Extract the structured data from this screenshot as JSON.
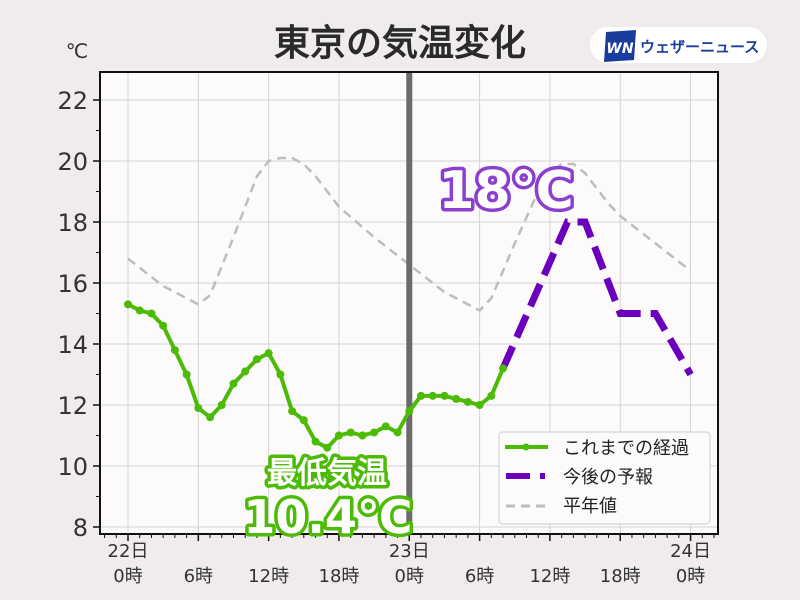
{
  "header": {
    "title": "東京の気温変化",
    "logo_mark": "WN",
    "logo_text": "ウェザーニュース"
  },
  "chart_data": {
    "type": "line",
    "title": "東京の気温変化",
    "ylabel": "℃",
    "xlabel": "",
    "ylim": [
      7.8,
      23
    ],
    "xlim": [
      -2.4,
      50.5
    ],
    "grid": true,
    "yticks": [
      8,
      10,
      12,
      14,
      16,
      18,
      20,
      22
    ],
    "xticks": [
      {
        "hour": 0,
        "day": "22日",
        "time": "0時"
      },
      {
        "hour": 6,
        "day": "",
        "time": "6時"
      },
      {
        "hour": 12,
        "day": "",
        "time": "12時"
      },
      {
        "hour": 18,
        "day": "",
        "time": "18時"
      },
      {
        "hour": 24,
        "day": "23日",
        "time": "0時"
      },
      {
        "hour": 30,
        "day": "",
        "time": "6時"
      },
      {
        "hour": 36,
        "day": "",
        "time": "12時"
      },
      {
        "hour": 42,
        "day": "",
        "time": "18時"
      },
      {
        "hour": 48,
        "day": "24日",
        "time": "0時"
      }
    ],
    "now_hour": 24,
    "legend_position": "bottom-right",
    "series": [
      {
        "name": "これまでの経過",
        "color": "#4cbb05",
        "style": "solid-marker",
        "x": [
          0,
          1,
          2,
          3,
          4,
          5,
          6,
          7,
          8,
          9,
          10,
          11,
          12,
          13,
          14,
          15,
          16,
          17,
          18,
          19,
          20,
          21,
          22,
          23,
          24,
          25,
          26,
          27,
          28,
          29,
          30,
          31,
          32
        ],
        "y": [
          15.3,
          15.1,
          15.0,
          14.6,
          13.8,
          13.0,
          11.9,
          11.6,
          12.0,
          12.7,
          13.1,
          13.5,
          13.7,
          13.0,
          11.8,
          11.5,
          10.8,
          10.6,
          11.0,
          11.1,
          11.0,
          11.1,
          11.3,
          11.1,
          11.8,
          12.3,
          12.3,
          12.3,
          12.2,
          12.1,
          12.0,
          12.3,
          13.2
        ]
      },
      {
        "name": "今後の予報",
        "color": "#6a00bd",
        "style": "dashed-thick",
        "x": [
          32,
          37.5,
          39,
          42,
          45,
          48
        ],
        "y": [
          13.2,
          18.0,
          18.0,
          15.0,
          15.0,
          13.0
        ]
      },
      {
        "name": "平年値",
        "color": "#bdbdbd",
        "style": "dashed",
        "x": [
          0,
          3,
          6,
          7,
          9,
          11,
          12,
          13,
          14,
          15,
          16,
          18,
          21,
          24,
          27,
          30,
          31,
          33,
          35,
          36,
          37,
          38,
          39,
          41,
          42,
          45,
          48
        ],
        "y": [
          16.8,
          15.9,
          15.3,
          15.6,
          17.5,
          19.5,
          20.0,
          20.1,
          20.1,
          19.9,
          19.5,
          18.5,
          17.5,
          16.6,
          15.7,
          15.1,
          15.5,
          17.3,
          19.0,
          19.6,
          19.9,
          19.9,
          19.6,
          18.6,
          18.2,
          17.3,
          16.4
        ]
      }
    ],
    "annotations": [
      {
        "text": "18℃",
        "color": "#8a3fcf"
      },
      {
        "text": "最低気温",
        "color": "#4cbb05"
      },
      {
        "text": "10.4℃",
        "color": "#4cbb05"
      }
    ]
  }
}
